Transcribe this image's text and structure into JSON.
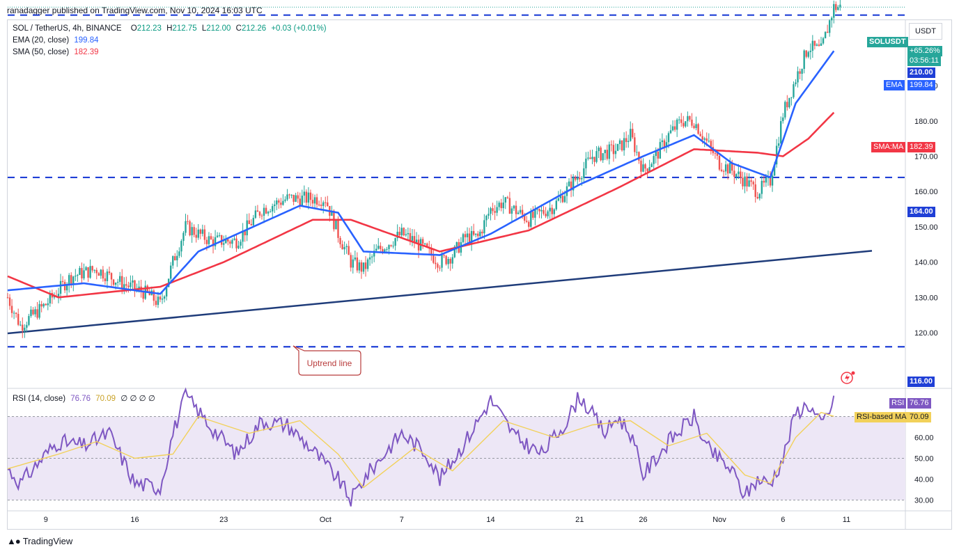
{
  "header": {
    "caption": "ranadagger published on TradingView.com, Nov 10, 2024 16:03 UTC"
  },
  "legend": {
    "symbol": "SOL / TetherUS, 4h, BINANCE",
    "o_label": "O",
    "o": "212.23",
    "h_label": "H",
    "h": "212.75",
    "l_label": "L",
    "l": "212.00",
    "c_label": "C",
    "c": "212.26",
    "change": "+0.03 (+0.01%)",
    "ema_label": "EMA (20, close)",
    "ema_value": "199.84",
    "sma_label": "SMA (50, close)",
    "sma_value": "182.39",
    "rsi_label": "RSI (14, close)",
    "rsi_value": "76.76",
    "rsi_ma_value": "70.09",
    "rsi_extra": "∅ ∅ ∅ ∅"
  },
  "currency_button": "USDT",
  "price_tags": {
    "symbol": "SOLUSDT",
    "change": "+65.26%",
    "countdown": "03:56:11",
    "level_210": "210.00",
    "ema_label": "EMA",
    "ema_value": "199.84",
    "sma_label": "SMA:MA",
    "sma_value": "182.39",
    "level_164": "164.00",
    "level_116": "116.00",
    "rsi_label": "RSI",
    "rsi_value": "76.76",
    "rsi_ma_label": "RSI-based MA",
    "rsi_ma_value": "70.09"
  },
  "annotation": {
    "text": "Uptrend line"
  },
  "brand": {
    "name": "TradingView"
  },
  "colors": {
    "up": "#26a69a",
    "down": "#ef5350",
    "ema": "#2962ff",
    "sma": "#f23645",
    "level": "#1f3fd6",
    "trend": "#1f3c7a",
    "rsi": "#7e57c2",
    "rsi_ma": "#f2d15a",
    "rsi_band": "#ede7f6"
  },
  "chart_data": [
    {
      "type": "candlestick",
      "title": "SOL / TetherUS, 4h, BINANCE",
      "x_tick_labels": [
        "9",
        "16",
        "23",
        "Oct",
        "7",
        "14",
        "21",
        "26",
        "Nov",
        "6",
        "11"
      ],
      "y_tick_labels": [
        "120.00",
        "130.00",
        "140.00",
        "150.00",
        "160.00",
        "170.00",
        "180.00",
        "190.00"
      ],
      "ylim": [
        115,
        220
      ],
      "horizontal_levels": [
        210,
        164,
        116
      ],
      "uptrend_line": {
        "from": [
          "Sep 6",
          119.8
        ],
        "to": [
          "Nov 13",
          143.2
        ]
      },
      "price_anchors": [
        [
          "Sep 6",
          130
        ],
        [
          "Sep 7",
          122
        ],
        [
          "Sep 9",
          128
        ],
        [
          "Sep 11",
          136
        ],
        [
          "Sep 13",
          138
        ],
        [
          "Sep 15",
          134
        ],
        [
          "Sep 17",
          131
        ],
        [
          "Sep 18",
          128
        ],
        [
          "Sep 19",
          140
        ],
        [
          "Sep 20",
          150
        ],
        [
          "Sep 22",
          146
        ],
        [
          "Sep 24",
          146
        ],
        [
          "Sep 26",
          155
        ],
        [
          "Sep 28",
          158
        ],
        [
          "Oct 1",
          158
        ],
        [
          "Oct 2",
          148
        ],
        [
          "Oct 3",
          140
        ],
        [
          "Oct 4",
          138
        ],
        [
          "Oct 5",
          143
        ],
        [
          "Oct 7",
          148
        ],
        [
          "Oct 8",
          146
        ],
        [
          "Oct 10",
          140
        ],
        [
          "Oct 11",
          142
        ],
        [
          "Oct 12",
          147
        ],
        [
          "Oct 13",
          147
        ],
        [
          "Oct 14",
          155
        ],
        [
          "Oct 15",
          157
        ],
        [
          "Oct 17",
          152
        ],
        [
          "Oct 19",
          156
        ],
        [
          "Oct 21",
          165
        ],
        [
          "Oct 22",
          170
        ],
        [
          "Oct 24",
          172
        ],
        [
          "Oct 25",
          176
        ],
        [
          "Oct 26",
          166
        ],
        [
          "Oct 27",
          170
        ],
        [
          "Oct 28",
          176
        ],
        [
          "Oct 29",
          180
        ],
        [
          "Oct 30",
          180
        ],
        [
          "Oct 31",
          174
        ],
        [
          "Nov 1",
          168
        ],
        [
          "Nov 2",
          166
        ],
        [
          "Nov 3",
          163
        ],
        [
          "Nov 4",
          160
        ],
        [
          "Nov 5",
          163
        ],
        [
          "Nov 6",
          182
        ],
        [
          "Nov 7",
          192
        ],
        [
          "Nov 8",
          201
        ],
        [
          "Nov 9",
          200
        ],
        [
          "Nov 10",
          212.26
        ]
      ],
      "ema_20": [
        [
          "Sep 6",
          132
        ],
        [
          "Sep 12",
          134
        ],
        [
          "Sep 18",
          131
        ],
        [
          "Sep 21",
          143
        ],
        [
          "Sep 29",
          156
        ],
        [
          "Oct 2",
          154
        ],
        [
          "Oct 4",
          143
        ],
        [
          "Oct 10",
          142
        ],
        [
          "Oct 14",
          148
        ],
        [
          "Oct 21",
          162
        ],
        [
          "Oct 26",
          170
        ],
        [
          "Oct 30",
          176
        ],
        [
          "Nov 2",
          168
        ],
        [
          "Nov 5",
          164
        ],
        [
          "Nov 7",
          185
        ],
        [
          "Nov 10",
          199.84
        ]
      ],
      "sma_50": [
        [
          "Sep 6",
          136
        ],
        [
          "Sep 10",
          130
        ],
        [
          "Sep 18",
          133
        ],
        [
          "Sep 23",
          140
        ],
        [
          "Sep 30",
          152
        ],
        [
          "Oct 3",
          152
        ],
        [
          "Oct 10",
          143
        ],
        [
          "Oct 17",
          149
        ],
        [
          "Oct 24",
          161
        ],
        [
          "Oct 30",
          172
        ],
        [
          "Nov 4",
          171
        ],
        [
          "Nov 6",
          170
        ],
        [
          "Nov 8",
          175
        ],
        [
          "Nov 10",
          182.39
        ]
      ]
    },
    {
      "type": "line",
      "title": "RSI (14, close)",
      "y_tick_labels": [
        "30.00",
        "40.00",
        "50.00",
        "60.00"
      ],
      "ylim": [
        25,
        85
      ],
      "band": [
        30,
        70
      ],
      "rsi_anchors": [
        [
          "Sep 6",
          45
        ],
        [
          "Sep 7",
          38
        ],
        [
          "Sep 9",
          52
        ],
        [
          "Sep 10",
          58
        ],
        [
          "Sep 12",
          56
        ],
        [
          "Sep 14",
          62
        ],
        [
          "Sep 16",
          38
        ],
        [
          "Sep 18",
          36
        ],
        [
          "Sep 19",
          62
        ],
        [
          "Sep 20",
          80
        ],
        [
          "Sep 22",
          65
        ],
        [
          "Sep 24",
          52
        ],
        [
          "Sep 26",
          68
        ],
        [
          "Sep 28",
          66
        ],
        [
          "Sep 30",
          54
        ],
        [
          "Oct 2",
          40
        ],
        [
          "Oct 3",
          30
        ],
        [
          "Oct 4",
          40
        ],
        [
          "Oct 6",
          55
        ],
        [
          "Oct 7",
          62
        ],
        [
          "Oct 9",
          52
        ],
        [
          "Oct 10",
          40
        ],
        [
          "Oct 12",
          58
        ],
        [
          "Oct 14",
          78
        ],
        [
          "Oct 16",
          60
        ],
        [
          "Oct 18",
          52
        ],
        [
          "Oct 20",
          68
        ],
        [
          "Oct 21",
          80
        ],
        [
          "Oct 23",
          62
        ],
        [
          "Oct 24",
          70
        ],
        [
          "Oct 25",
          62
        ],
        [
          "Oct 26",
          42
        ],
        [
          "Oct 28",
          58
        ],
        [
          "Oct 30",
          70
        ],
        [
          "Oct 31",
          55
        ],
        [
          "Nov 2",
          44
        ],
        [
          "Nov 3",
          32
        ],
        [
          "Nov 4",
          40
        ],
        [
          "Nov 5",
          38
        ],
        [
          "Nov 6",
          50
        ],
        [
          "Nov 7",
          72
        ],
        [
          "Nov 8",
          76
        ],
        [
          "Nov 9",
          66
        ],
        [
          "Nov 10",
          76.76
        ]
      ],
      "rsi_ma_anchors": [
        [
          "Sep 6",
          45
        ],
        [
          "Sep 10",
          52
        ],
        [
          "Sep 13",
          58
        ],
        [
          "Sep 16",
          50
        ],
        [
          "Sep 19",
          52
        ],
        [
          "Sep 21",
          70
        ],
        [
          "Sep 25",
          62
        ],
        [
          "Sep 29",
          68
        ],
        [
          "Oct 2",
          52
        ],
        [
          "Oct 4",
          36
        ],
        [
          "Oct 8",
          55
        ],
        [
          "Oct 11",
          44
        ],
        [
          "Oct 15",
          68
        ],
        [
          "Oct 19",
          60
        ],
        [
          "Oct 22",
          66
        ],
        [
          "Oct 25",
          68
        ],
        [
          "Oct 28",
          56
        ],
        [
          "Oct 31",
          62
        ],
        [
          "Nov 3",
          42
        ],
        [
          "Nov 5",
          38
        ],
        [
          "Nov 7",
          60
        ],
        [
          "Nov 9",
          72
        ],
        [
          "Nov 10",
          70.09
        ]
      ]
    }
  ]
}
